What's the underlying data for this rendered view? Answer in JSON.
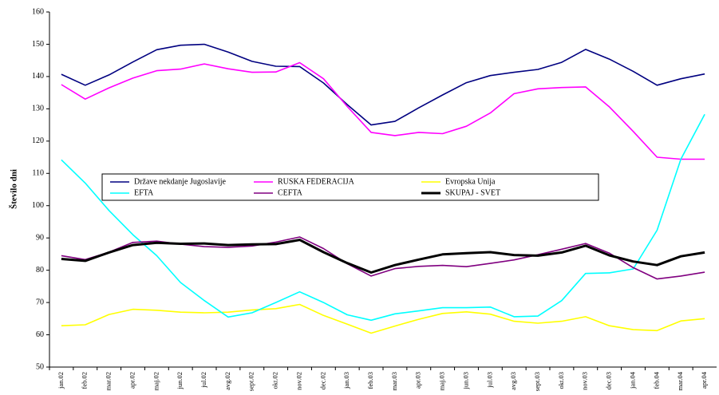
{
  "chart_data": {
    "type": "line",
    "ylabel": "Število dni",
    "categories": [
      "jan.02",
      "feb.02",
      "mar.02",
      "apr.02",
      "maj.02",
      "jun.02",
      "jul.02",
      "avg.02",
      "sept.02",
      "okt.02",
      "nov.02",
      "dec.02",
      "jan.03",
      "feb.03",
      "mar.03",
      "apr.03",
      "maj.03",
      "jun.03",
      "jul.03",
      "avg.03",
      "sept.03",
      "okt.03",
      "nov.03",
      "dec.03",
      "jan.04",
      "feb.04",
      "mar.04",
      "apr.04"
    ],
    "series": [
      {
        "name": "Države nekdanje Jugoslavije",
        "color": "#000080",
        "values": [
          140.7,
          137.3,
          140.5,
          144.5,
          148.3,
          149.7,
          150.0,
          147.6,
          144.7,
          143.2,
          143.1,
          138.0,
          131.3,
          125.0,
          126.1,
          130.3,
          134.3,
          138.1,
          140.3,
          141.3,
          142.2,
          144.4,
          148.4,
          145.4,
          141.6,
          137.3,
          139.3,
          140.8
        ]
      },
      {
        "name": "RUSKA FEDERACIJA",
        "color": "#ff00ff",
        "values": [
          137.5,
          133.0,
          136.5,
          139.5,
          141.8,
          142.3,
          143.9,
          142.4,
          141.3,
          141.4,
          144.3,
          139.3,
          130.7,
          122.7,
          121.7,
          122.7,
          122.3,
          124.6,
          128.7,
          134.7,
          136.2,
          136.6,
          136.8,
          130.6,
          123.0,
          115.0,
          114.4,
          114.4
        ]
      },
      {
        "name": "Evropska Unija",
        "color": "#ffff00",
        "values": [
          62.8,
          63.1,
          66.3,
          67.9,
          67.6,
          67.0,
          66.8,
          67.0,
          67.7,
          68.1,
          69.4,
          66.0,
          63.3,
          60.5,
          62.7,
          64.8,
          66.6,
          67.1,
          66.4,
          64.2,
          63.6,
          64.2,
          65.6,
          62.8,
          61.6,
          61.3,
          64.3,
          65.0
        ]
      },
      {
        "name": "EFTA",
        "color": "#00ffff",
        "values": [
          114.2,
          107.0,
          98.5,
          91.0,
          84.5,
          76.2,
          70.6,
          65.5,
          66.8,
          70.0,
          73.3,
          70.0,
          66.2,
          64.5,
          66.5,
          67.4,
          68.4,
          68.4,
          68.6,
          65.6,
          65.8,
          70.6,
          79.0,
          79.2,
          80.4,
          92.4,
          114.4,
          128.3
        ]
      },
      {
        "name": "CEFTA",
        "color": "#800080",
        "values": [
          84.5,
          83.3,
          85.6,
          88.6,
          89.0,
          88.1,
          87.3,
          87.1,
          87.5,
          88.7,
          90.3,
          86.7,
          82.0,
          78.2,
          80.5,
          81.2,
          81.5,
          81.1,
          82.1,
          83.2,
          84.8,
          86.5,
          88.3,
          85.3,
          80.8,
          77.3,
          78.2,
          79.4
        ]
      },
      {
        "name": "SKUPAJ - SVET",
        "color": "#000000",
        "values": [
          83.5,
          82.9,
          85.5,
          87.8,
          88.5,
          88.2,
          88.3,
          87.8,
          88.0,
          88.1,
          89.4,
          85.6,
          82.2,
          79.3,
          81.6,
          83.3,
          84.9,
          85.3,
          85.6,
          84.7,
          84.5,
          85.5,
          87.6,
          84.6,
          82.7,
          81.6,
          84.3,
          85.5
        ]
      }
    ],
    "ylim": [
      50,
      160
    ],
    "yticks": [
      50,
      60,
      70,
      80,
      90,
      100,
      110,
      120,
      130,
      140,
      150,
      160
    ]
  }
}
